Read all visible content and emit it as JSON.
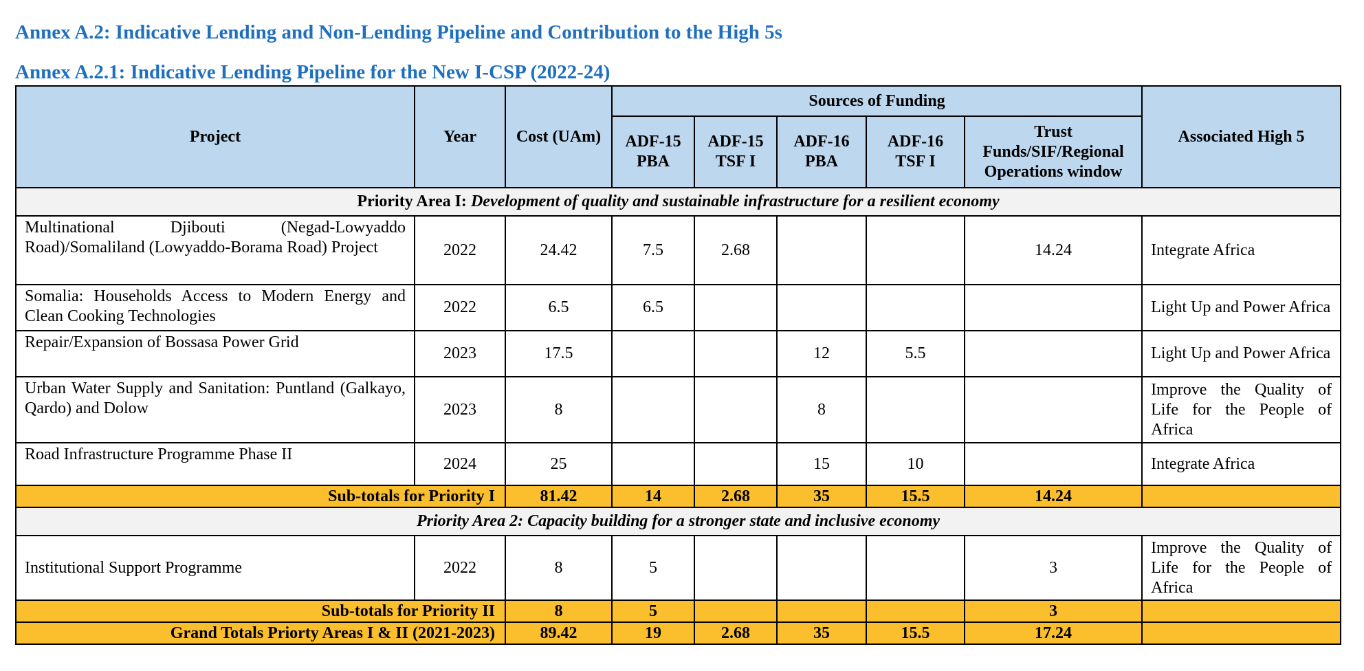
{
  "headings": {
    "annex": "Annex A.2:  Indicative Lending and Non-Lending Pipeline and Contribution to the High 5s",
    "subannex": "Annex A.2.1:  Indicative Lending Pipeline for the New I-CSP (2022-24)"
  },
  "table": {
    "header": {
      "project": "Project",
      "year": "Year",
      "cost": "Cost (UAm)",
      "sources": "Sources of Funding",
      "adf15_pba": "ADF-15 PBA",
      "adf15_tsf": "ADF-15 TSF I",
      "adf16_pba": "ADF-16 PBA",
      "adf16_tsf": "ADF-16 TSF I",
      "trust": "Trust Funds/SIF/Regional Operations window",
      "high5": "Associated High 5"
    },
    "areas": [
      {
        "prefix": "Priority Area I: ",
        "title": "Development of quality and sustainable infrastructure for a resilient economy",
        "rows": [
          {
            "project": "Multinational Djibouti (Negad-Lowyaddo Road)/Somaliland (Lowyaddo-Borama Road) Project",
            "year": "2022",
            "cost": "24.42",
            "adf15_pba": "7.5",
            "adf15_tsf": "2.68",
            "adf16_pba": "",
            "adf16_tsf": "",
            "trust": "14.24",
            "high5": "Integrate Africa"
          },
          {
            "project": "Somalia: Households Access to Modern Energy and Clean Cooking Technologies",
            "year": "2022",
            "cost": "6.5",
            "adf15_pba": "6.5",
            "adf15_tsf": "",
            "adf16_pba": "",
            "adf16_tsf": "",
            "trust": "",
            "high5": "Light Up and Power Africa"
          },
          {
            "project": "Repair/Expansion of Bossasa Power Grid",
            "year": "2023",
            "cost": "17.5",
            "adf15_pba": "",
            "adf15_tsf": "",
            "adf16_pba": "12",
            "adf16_tsf": "5.5",
            "trust": "",
            "high5": "Light Up and Power Africa"
          },
          {
            "project": "Urban Water Supply and Sanitation: Puntland (Galkayo, Qardo) and Dolow",
            "year": "2023",
            "cost": "8",
            "adf15_pba": "",
            "adf15_tsf": "",
            "adf16_pba": "8",
            "adf16_tsf": "",
            "trust": "",
            "high5": "Improve the Quality of Life for the People of Africa"
          },
          {
            "project": "Road Infrastructure Programme Phase II",
            "year": "2024",
            "cost": "25",
            "adf15_pba": "",
            "adf15_tsf": "",
            "adf16_pba": "15",
            "adf16_tsf": "10",
            "trust": "",
            "high5": "Integrate Africa"
          }
        ],
        "subtotal": {
          "label": "Sub-totals for Priority I",
          "cost": "81.42",
          "adf15_pba": "14",
          "adf15_tsf": "2.68",
          "adf16_pba": "35",
          "adf16_tsf": "15.5",
          "trust": "14.24"
        }
      },
      {
        "prefix": "Priority Area 2",
        "title": ": Capacity building for a stronger state and inclusive economy",
        "rows": [
          {
            "project": "Institutional Support Programme",
            "year": "2022",
            "cost": "8",
            "adf15_pba": "5",
            "adf15_tsf": "",
            "adf16_pba": "",
            "adf16_tsf": "",
            "trust": "3",
            "high5": "Improve the Quality of Life for the People of Africa"
          }
        ],
        "subtotal": {
          "label": "Sub-totals for Priority II",
          "cost": "8",
          "adf15_pba": "5",
          "adf15_tsf": "",
          "adf16_pba": "",
          "adf16_tsf": "",
          "trust": "3"
        }
      }
    ],
    "grand_total": {
      "label": "Grand Totals Priorty Areas I & II (2021-2023)",
      "cost": "89.42",
      "adf15_pba": "19",
      "adf15_tsf": "2.68",
      "adf16_pba": "35",
      "adf16_tsf": "15.5",
      "trust": "17.24"
    }
  }
}
